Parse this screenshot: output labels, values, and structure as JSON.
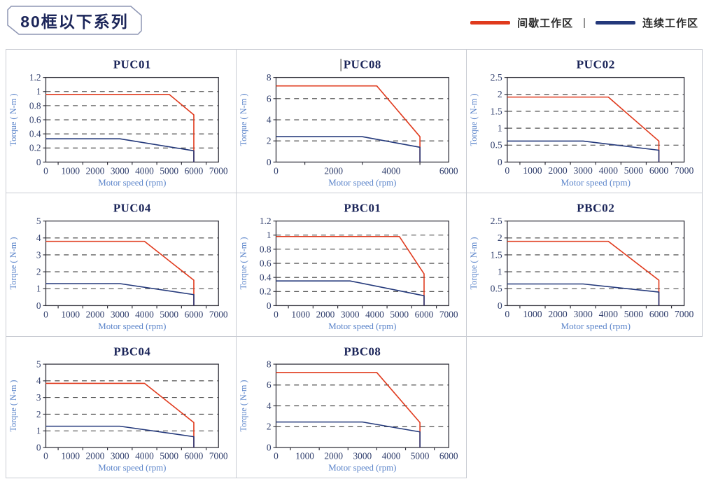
{
  "header": {
    "badge": "80框以下系列",
    "legend": {
      "items": [
        {
          "label": "间歇工作区",
          "color": "#e03a1d"
        },
        {
          "label": "连续工作区",
          "color": "#24397b"
        }
      ],
      "separator": "|"
    }
  },
  "style": {
    "red": "#e03a1d",
    "navy": "#24397b",
    "grid_line": "#3d3d3d",
    "frame": "#32323c",
    "tick_text": "#32406e",
    "axis_text": "#5c85ca",
    "title_text": "#1b2559",
    "cell_border": "#c9ccd3",
    "badge_border": "#8e96b4"
  },
  "chart_data": [
    {
      "type": "line",
      "title": "PUC01",
      "xlabel": "Motor speed (rpm)",
      "ylabel": "Torque ( N-m )",
      "xlim": [
        0,
        7000
      ],
      "ylim": [
        0,
        1.2
      ],
      "xtick_step": 1000,
      "ytick_step": 0.2,
      "grid": "dashed-horizontal",
      "legend_position": "none",
      "series": [
        {
          "name": "间歇工作区",
          "color": "red",
          "points": [
            [
              0,
              0.96
            ],
            [
              5000,
              0.96
            ],
            [
              6000,
              0.67
            ],
            [
              6000,
              0
            ]
          ]
        },
        {
          "name": "连续工作区",
          "color": "navy",
          "points": [
            [
              0,
              0.33
            ],
            [
              3000,
              0.33
            ],
            [
              6000,
              0.16
            ],
            [
              6000,
              0
            ]
          ]
        }
      ]
    },
    {
      "type": "line",
      "title": "PUC08",
      "caret": true,
      "xlabel": "Motor speed (rpm)",
      "ylabel": "Torque ( N-m )",
      "xlim": [
        0,
        6000
      ],
      "ylim": [
        0,
        8
      ],
      "xtick_step": 2000,
      "ytick_step": 2,
      "grid": "dashed-horizontal",
      "legend_position": "none",
      "series": [
        {
          "name": "间歇工作区",
          "color": "red",
          "points": [
            [
              0,
              7.2
            ],
            [
              3500,
              7.2
            ],
            [
              5000,
              2.4
            ],
            [
              5000,
              0
            ]
          ]
        },
        {
          "name": "连续工作区",
          "color": "navy",
          "points": [
            [
              0,
              2.4
            ],
            [
              3000,
              2.4
            ],
            [
              5000,
              1.4
            ],
            [
              5000,
              0
            ]
          ]
        }
      ]
    },
    {
      "type": "line",
      "title": "PUC02",
      "xlabel": "Motor speed (rpm)",
      "ylabel": "Torque ( N-m )",
      "xlim": [
        0,
        7000
      ],
      "ylim": [
        0,
        2.5
      ],
      "xtick_step": 1000,
      "ytick_step": 0.5,
      "grid": "dashed-horizontal",
      "legend_position": "none",
      "series": [
        {
          "name": "间歇工作区",
          "color": "red",
          "points": [
            [
              0,
              1.92
            ],
            [
              4000,
              1.92
            ],
            [
              6000,
              0.62
            ],
            [
              6000,
              0
            ]
          ]
        },
        {
          "name": "连续工作区",
          "color": "navy",
          "points": [
            [
              0,
              0.62
            ],
            [
              3000,
              0.62
            ],
            [
              6000,
              0.35
            ],
            [
              6000,
              0
            ]
          ]
        }
      ]
    },
    {
      "type": "line",
      "title": "PUC04",
      "xlabel": "Motor speed (rpm)",
      "ylabel": "Torque ( N-m )",
      "xlim": [
        0,
        7000
      ],
      "ylim": [
        0,
        5
      ],
      "xtick_step": 1000,
      "ytick_step": 1,
      "grid": "dashed-horizontal",
      "legend_position": "none",
      "series": [
        {
          "name": "间歇工作区",
          "color": "red",
          "points": [
            [
              0,
              3.8
            ],
            [
              4000,
              3.8
            ],
            [
              6000,
              1.5
            ],
            [
              6000,
              0
            ]
          ]
        },
        {
          "name": "连续工作区",
          "color": "navy",
          "points": [
            [
              0,
              1.3
            ],
            [
              3000,
              1.3
            ],
            [
              6000,
              0.65
            ],
            [
              6000,
              0
            ]
          ]
        }
      ]
    },
    {
      "type": "line",
      "title": "PBC01",
      "xlabel": "Motor speed (rpm)",
      "ylabel": "Torque ( N-m )",
      "xlim": [
        0,
        7000
      ],
      "ylim": [
        0,
        1.2
      ],
      "xtick_step": 1000,
      "ytick_step": 0.2,
      "grid": "dashed-horizontal",
      "legend_position": "none",
      "series": [
        {
          "name": "间歇工作区",
          "color": "red",
          "points": [
            [
              0,
              0.98
            ],
            [
              5000,
              0.98
            ],
            [
              6000,
              0.45
            ],
            [
              6000,
              0
            ]
          ]
        },
        {
          "name": "连续工作区",
          "color": "navy",
          "points": [
            [
              0,
              0.35
            ],
            [
              3000,
              0.35
            ],
            [
              6000,
              0.14
            ],
            [
              6000,
              0
            ]
          ]
        }
      ]
    },
    {
      "type": "line",
      "title": "PBC02",
      "xlabel": "Motor speed (rpm)",
      "ylabel": "Torque ( N-m )",
      "xlim": [
        0,
        7000
      ],
      "ylim": [
        0,
        2.5
      ],
      "xtick_step": 1000,
      "ytick_step": 0.5,
      "grid": "dashed-horizontal",
      "legend_position": "none",
      "series": [
        {
          "name": "间歇工作区",
          "color": "red",
          "points": [
            [
              0,
              1.9
            ],
            [
              4000,
              1.9
            ],
            [
              6000,
              0.75
            ],
            [
              6000,
              0
            ]
          ]
        },
        {
          "name": "连续工作区",
          "color": "navy",
          "points": [
            [
              0,
              0.64
            ],
            [
              3000,
              0.64
            ],
            [
              6000,
              0.4
            ],
            [
              6000,
              0
            ]
          ]
        }
      ]
    },
    {
      "type": "line",
      "title": "PBC04",
      "xlabel": "Motor speed (rpm)",
      "ylabel": "Torque ( N-m )",
      "xlim": [
        0,
        7000
      ],
      "ylim": [
        0,
        5
      ],
      "xtick_step": 1000,
      "ytick_step": 1,
      "grid": "dashed-horizontal",
      "legend_position": "none",
      "series": [
        {
          "name": "间歇工作区",
          "color": "red",
          "points": [
            [
              0,
              3.85
            ],
            [
              4000,
              3.85
            ],
            [
              6000,
              1.5
            ],
            [
              6000,
              0
            ]
          ]
        },
        {
          "name": "连续工作区",
          "color": "navy",
          "points": [
            [
              0,
              1.28
            ],
            [
              3000,
              1.28
            ],
            [
              6000,
              0.65
            ],
            [
              6000,
              0
            ]
          ]
        }
      ]
    },
    {
      "type": "line",
      "title": "PBC08",
      "xlabel": "Motor speed (rpm)",
      "ylabel": "Torque ( N-m )",
      "xlim": [
        0,
        6000
      ],
      "ylim": [
        0,
        8
      ],
      "xtick_step": 1000,
      "ytick_step": 2,
      "grid": "dashed-horizontal",
      "legend_position": "none",
      "series": [
        {
          "name": "间歇工作区",
          "color": "red",
          "points": [
            [
              0,
              7.2
            ],
            [
              3500,
              7.2
            ],
            [
              5000,
              2.4
            ],
            [
              5000,
              0
            ]
          ]
        },
        {
          "name": "连续工作区",
          "color": "navy",
          "points": [
            [
              0,
              2.45
            ],
            [
              3000,
              2.45
            ],
            [
              5000,
              1.5
            ],
            [
              5000,
              0
            ]
          ]
        }
      ]
    }
  ]
}
